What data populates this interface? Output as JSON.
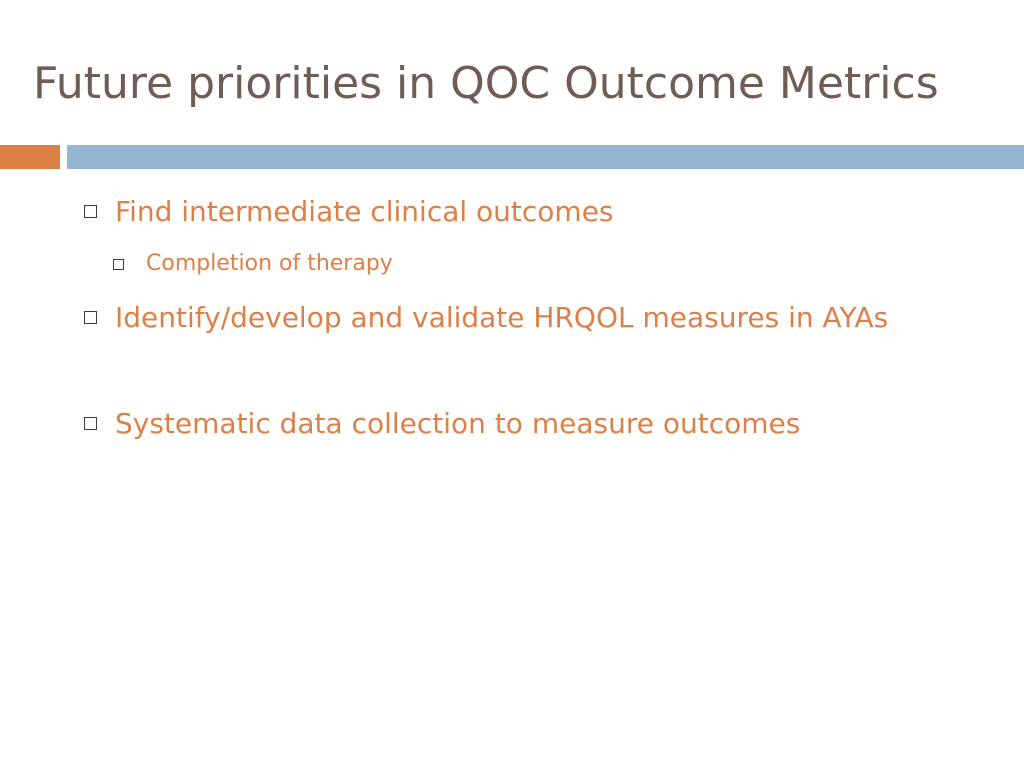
{
  "slide": {
    "title": "Future priorities in QOC Outcome Metrics",
    "accent_colors": {
      "title_text": "#6f5d55",
      "bullet_text": "#dd8047",
      "bar_left": "#dd8047",
      "bar_right": "#94b6d2"
    }
  },
  "bullets": [
    {
      "level": 1,
      "text": "Find intermediate clinical outcomes",
      "icon": "square-bullet-icon"
    },
    {
      "level": 2,
      "text": "Completion of therapy",
      "icon": "square-bullet-icon"
    },
    {
      "level": 1,
      "text": "Identify/develop and validate HRQOL measures in AYAs",
      "icon": "square-bullet-icon"
    },
    {
      "level": 1,
      "text": "Systematic data collection to measure outcomes",
      "icon": "square-bullet-icon"
    }
  ]
}
